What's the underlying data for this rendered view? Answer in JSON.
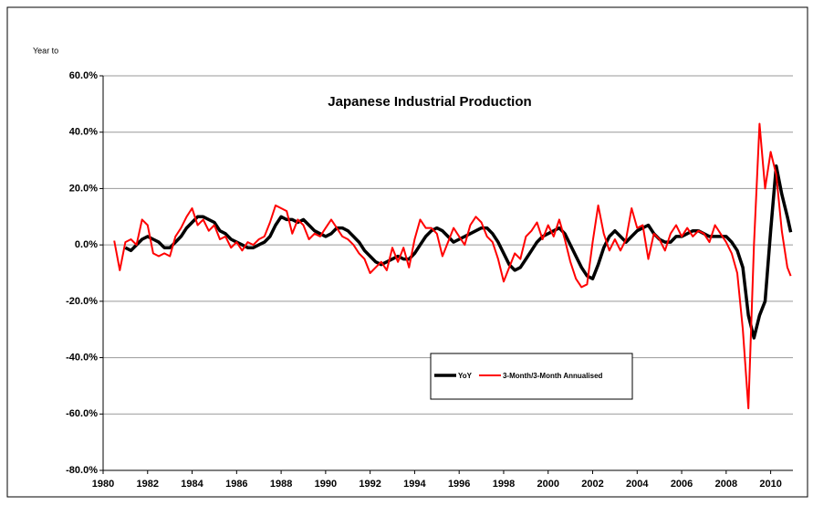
{
  "chart_data": {
    "type": "line",
    "title": "Japanese Industrial Production",
    "ylabel": "Year to",
    "xlim": [
      1980,
      2011
    ],
    "xticks": [
      1980,
      1982,
      1984,
      1986,
      1988,
      1990,
      1992,
      1994,
      1996,
      1998,
      2000,
      2002,
      2004,
      2006,
      2008,
      2010
    ],
    "ylim": [
      -80,
      60
    ],
    "yticks": [
      {
        "value": -80,
        "label": "-80.0%"
      },
      {
        "value": -60,
        "label": "-60.0%"
      },
      {
        "value": -40,
        "label": "-40.0%"
      },
      {
        "value": -20,
        "label": "-20.0%"
      },
      {
        "value": 0,
        "label": "0.0%"
      },
      {
        "value": 20,
        "label": "20.0%"
      },
      {
        "value": 40,
        "label": "40.0%"
      },
      {
        "value": 60,
        "label": "60.0%"
      }
    ],
    "grid": true,
    "series": [
      {
        "name": "YoY",
        "color": "#000000",
        "x": [
          1981,
          1981.25,
          1981.5,
          1981.75,
          1982,
          1982.25,
          1982.5,
          1982.75,
          1983,
          1983.25,
          1983.5,
          1983.75,
          1984,
          1984.25,
          1984.5,
          1984.75,
          1985,
          1985.25,
          1985.5,
          1985.75,
          1986,
          1986.25,
          1986.5,
          1986.75,
          1987,
          1987.25,
          1987.5,
          1987.75,
          1988,
          1988.25,
          1988.5,
          1988.75,
          1989,
          1989.25,
          1989.5,
          1989.75,
          1990,
          1990.25,
          1990.5,
          1990.75,
          1991,
          1991.25,
          1991.5,
          1991.75,
          1992,
          1992.25,
          1992.5,
          1992.75,
          1993,
          1993.25,
          1993.5,
          1993.75,
          1994,
          1994.25,
          1994.5,
          1994.75,
          1995,
          1995.25,
          1995.5,
          1995.75,
          1996,
          1996.25,
          1996.5,
          1996.75,
          1997,
          1997.25,
          1997.5,
          1997.75,
          1998,
          1998.25,
          1998.5,
          1998.75,
          1999,
          1999.25,
          1999.5,
          1999.75,
          2000,
          2000.25,
          2000.5,
          2000.75,
          2001,
          2001.25,
          2001.5,
          2001.75,
          2002,
          2002.25,
          2002.5,
          2002.75,
          2003,
          2003.25,
          2003.5,
          2003.75,
          2004,
          2004.25,
          2004.5,
          2004.75,
          2005,
          2005.25,
          2005.5,
          2005.75,
          2006,
          2006.25,
          2006.5,
          2006.75,
          2007,
          2007.25,
          2007.5,
          2007.75,
          2008,
          2008.25,
          2008.5,
          2008.75,
          2009,
          2009.25,
          2009.5,
          2009.75,
          2010,
          2010.25,
          2010.5,
          2010.75,
          2010.9
        ],
        "values": [
          -1,
          -2,
          0,
          2,
          3,
          2,
          1,
          -1,
          -1,
          1,
          3,
          6,
          8,
          10,
          10,
          9,
          8,
          5,
          4,
          2,
          1,
          0,
          -1,
          -1,
          0,
          1,
          3,
          7,
          10,
          9,
          9,
          8,
          9,
          7,
          5,
          4,
          3,
          4,
          6,
          6,
          5,
          3,
          1,
          -2,
          -4,
          -6,
          -7,
          -6,
          -5,
          -4,
          -5,
          -5,
          -3,
          0,
          3,
          5,
          6,
          5,
          3,
          1,
          2,
          3,
          4,
          5,
          6,
          6,
          4,
          1,
          -3,
          -7,
          -9,
          -8,
          -5,
          -2,
          1,
          3,
          4,
          5,
          6,
          4,
          0,
          -4,
          -8,
          -11,
          -12,
          -7,
          -1,
          3,
          5,
          3,
          1,
          3,
          5,
          6,
          7,
          4,
          2,
          1,
          1,
          3,
          3,
          4,
          5,
          5,
          4,
          3,
          3,
          3,
          3,
          1,
          -2,
          -8,
          -25,
          -33,
          -25,
          -20,
          5,
          28,
          18,
          10,
          4.5
        ]
      },
      {
        "name": "3-Month/3-Month Annualised",
        "color": "#ff0000",
        "x": [
          1980.5,
          1980.75,
          1981,
          1981.25,
          1981.5,
          1981.75,
          1982,
          1982.25,
          1982.5,
          1982.75,
          1983,
          1983.25,
          1983.5,
          1983.75,
          1984,
          1984.25,
          1984.5,
          1984.75,
          1985,
          1985.25,
          1985.5,
          1985.75,
          1986,
          1986.25,
          1986.5,
          1986.75,
          1987,
          1987.25,
          1987.5,
          1987.75,
          1988,
          1988.25,
          1988.5,
          1988.75,
          1989,
          1989.25,
          1989.5,
          1989.75,
          1990,
          1990.25,
          1990.5,
          1990.75,
          1991,
          1991.25,
          1991.5,
          1991.75,
          1992,
          1992.25,
          1992.5,
          1992.75,
          1993,
          1993.25,
          1993.5,
          1993.75,
          1994,
          1994.25,
          1994.5,
          1994.75,
          1995,
          1995.25,
          1995.5,
          1995.75,
          1996,
          1996.25,
          1996.5,
          1996.75,
          1997,
          1997.25,
          1997.5,
          1997.75,
          1998,
          1998.25,
          1998.5,
          1998.75,
          1999,
          1999.25,
          1999.5,
          1999.75,
          2000,
          2000.25,
          2000.5,
          2000.75,
          2001,
          2001.25,
          2001.5,
          2001.75,
          2002,
          2002.25,
          2002.5,
          2002.75,
          2003,
          2003.25,
          2003.5,
          2003.75,
          2004,
          2004.25,
          2004.5,
          2004.75,
          2005,
          2005.25,
          2005.5,
          2005.75,
          2006,
          2006.25,
          2006.5,
          2006.75,
          2007,
          2007.25,
          2007.5,
          2007.75,
          2008,
          2008.25,
          2008.5,
          2008.75,
          2009,
          2009.25,
          2009.5,
          2009.75,
          2010,
          2010.25,
          2010.5,
          2010.75,
          2010.9
        ],
        "values": [
          1.5,
          -9,
          1,
          2,
          0,
          9,
          7,
          -3,
          -4,
          -3,
          -4,
          3,
          6,
          10,
          13,
          7,
          9,
          5,
          7,
          2,
          3,
          -1,
          1,
          -2,
          1,
          0,
          2,
          3,
          8,
          14,
          13,
          12,
          4,
          9,
          7,
          2,
          4,
          3,
          6,
          9,
          6,
          3,
          2,
          0,
          -3,
          -5,
          -10,
          -8,
          -6,
          -9,
          -1,
          -6,
          -1,
          -8,
          2,
          9,
          6,
          6,
          4,
          -4,
          1,
          6,
          3,
          0,
          7,
          10,
          8,
          3,
          1,
          -5,
          -13,
          -8,
          -3,
          -5,
          3,
          5,
          8,
          2,
          7,
          3,
          9,
          2,
          -6,
          -12,
          -15,
          -14,
          1,
          14,
          4,
          -2,
          2,
          -2,
          2,
          13,
          6,
          7,
          -5,
          4,
          2,
          -2,
          4,
          7,
          3,
          6,
          3,
          5,
          4,
          1,
          7,
          4,
          1,
          -3,
          -10,
          -30,
          -58,
          0,
          43,
          20,
          33,
          25,
          5,
          -8,
          -11
        ]
      }
    ]
  }
}
